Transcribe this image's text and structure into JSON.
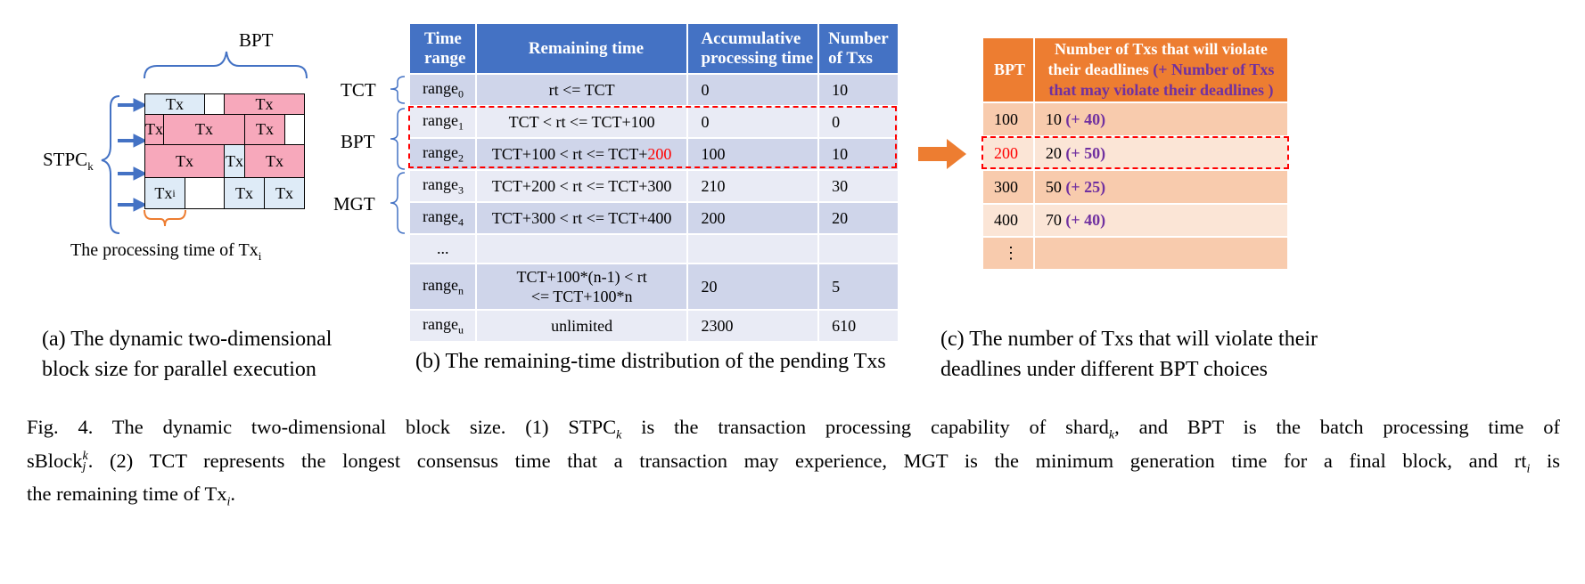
{
  "panel_a": {
    "bpt_label": "BPT",
    "stpc_label": "STPC",
    "stpc_sub": "k",
    "rows": [
      [
        "Tx",
        "",
        "Tx"
      ],
      [
        "Tx",
        "Tx",
        "Tx",
        ""
      ],
      [
        "Tx",
        "Tx",
        "Tx"
      ],
      [
        "Tx",
        "",
        "Tx",
        "Tx"
      ]
    ],
    "txi_label": "Tx",
    "txi_sub": "i",
    "proc_label": "The processing time of Tx",
    "proc_sub": "i",
    "caption_line1": "(a) The dynamic two-dimensional",
    "caption_line2": "block size for parallel execution"
  },
  "panel_b": {
    "side_labels": [
      "TCT",
      "BPT",
      "MGT"
    ],
    "headers": [
      "Time range",
      "Remaining time",
      "Accumulative processing time",
      "Number of Txs"
    ],
    "header_lines": [
      [
        "Time",
        "range"
      ],
      [
        "Remaining time"
      ],
      [
        "Accumulative",
        "processing time"
      ],
      [
        "Number",
        "of Txs"
      ]
    ],
    "rows": [
      {
        "range": "range",
        "sub": "0",
        "rt": "rt <= TCT",
        "acc": "0",
        "num": "10"
      },
      {
        "range": "range",
        "sub": "1",
        "rt": "TCT < rt <= TCT+100",
        "acc": "0",
        "num": "0"
      },
      {
        "range": "range",
        "sub": "2",
        "rt_pre": "TCT+100 < rt <= TCT+",
        "rt_red": "200",
        "acc": "100",
        "num": "10"
      },
      {
        "range": "range",
        "sub": "3",
        "rt": "TCT+200 < rt <= TCT+300",
        "acc": "210",
        "num": "30"
      },
      {
        "range": "range",
        "sub": "4",
        "rt": "TCT+300 < rt <= TCT+400",
        "acc": "200",
        "num": "20"
      },
      {
        "range": "...",
        "sub": "",
        "rt": "",
        "acc": "",
        "num": ""
      },
      {
        "range": "range",
        "sub": "n",
        "rt1": "TCT+100*(n-1) < rt",
        "rt2": "<= TCT+100*n",
        "acc": "20",
        "num": "5"
      },
      {
        "range": "range",
        "sub": "u",
        "rt": "unlimited",
        "acc": "2300",
        "num": "610"
      }
    ],
    "caption": "(b) The remaining-time distribution of the pending Txs"
  },
  "panel_c": {
    "header_bpt": "BPT",
    "header_line1": "Number of Txs that will violate",
    "header_line2a": "their deadlines ",
    "header_line2b": "(+ Number of Txs",
    "header_line3": "that may violate their deadlines )",
    "rows": [
      {
        "bpt": "100",
        "val": "10",
        "extra": "(+ 40)"
      },
      {
        "bpt": "200",
        "val": "20",
        "extra": "(+ 50)"
      },
      {
        "bpt": "300",
        "val": "50",
        "extra": "(+ 25)"
      },
      {
        "bpt": "400",
        "val": "70",
        "extra": "(+ 40)"
      },
      {
        "bpt": "⋮",
        "val": "",
        "extra": ""
      }
    ],
    "caption_line1": "(c) The number of Txs that will violate their",
    "caption_line2": "deadlines under different BPT choices"
  },
  "figure_caption": {
    "line1": "Fig. 4.  The dynamic two-dimensional block size. (1) STPC",
    "line1_sub": "k",
    "line1_rest": " is the transaction processing capability of shard",
    "line1_sub2": "k",
    "line1_end": ", and BPT is the batch processing time of",
    "line2_a": "sBlock",
    "line2_sup": "k",
    "line2_sub": "j",
    "line2_rest": ". (2) TCT represents the longest consensus time that a transaction may experience, MGT is the minimum generation time for a final block, and rt",
    "line2_sub2": "i",
    "line2_end": " is",
    "line3": "the remaining time of Tx",
    "line3_sub": "i",
    "line3_end": "."
  },
  "colors": {
    "table_b_header": "#4472c4",
    "table_c_header": "#ed7d31",
    "tx_blue": "#deebf7",
    "tx_pink": "#f7a8bb",
    "highlight_red": "#ff0000",
    "purple": "#7030a0",
    "arrow_blue": "#4472c4",
    "arrow_orange": "#ed7d31"
  }
}
